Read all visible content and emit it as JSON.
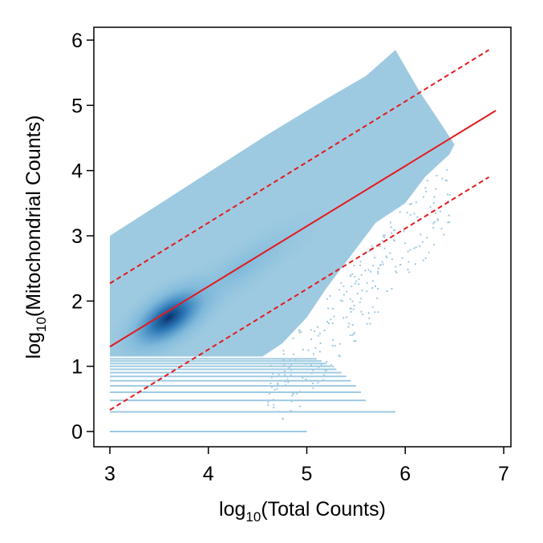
{
  "chart_data": {
    "type": "scatter",
    "title": "",
    "xlabel": {
      "prefix": "log",
      "subscript": "10",
      "text": "(Total Counts)"
    },
    "ylabel": {
      "prefix": "log",
      "subscript": "10",
      "text": "(Mitochondrial Counts)"
    },
    "xlim": [
      3,
      7
    ],
    "ylim": [
      0,
      6
    ],
    "xticks": [
      3,
      4,
      5,
      6,
      7
    ],
    "yticks": [
      0,
      1,
      2,
      3,
      4,
      5,
      6
    ],
    "grid": false,
    "legend": "none",
    "density_color": "#9ecae1",
    "density_peak_color": "#08306b",
    "density_peak": {
      "x": 3.6,
      "y": 1.75
    },
    "point_cloud_outline": [
      [
        3.0,
        1.15
      ],
      [
        3.0,
        3.0
      ],
      [
        4.0,
        3.97
      ],
      [
        4.6,
        4.55
      ],
      [
        5.2,
        5.1
      ],
      [
        5.6,
        5.45
      ],
      [
        5.9,
        5.85
      ],
      [
        6.15,
        5.2
      ],
      [
        6.35,
        4.75
      ],
      [
        6.5,
        4.4
      ],
      [
        6.45,
        4.25
      ],
      [
        6.2,
        3.9
      ],
      [
        6.0,
        3.5
      ],
      [
        5.7,
        3.2
      ],
      [
        5.45,
        2.7
      ],
      [
        5.2,
        2.2
      ],
      [
        5.0,
        1.75
      ],
      [
        4.75,
        1.35
      ],
      [
        4.55,
        1.15
      ]
    ],
    "discrete_rows": [
      {
        "y": 0.0,
        "x_end": 5.0
      },
      {
        "y": 0.301,
        "x_end": 5.9
      },
      {
        "y": 0.477,
        "x_end": 5.6
      },
      {
        "y": 0.602,
        "x_end": 5.55
      },
      {
        "y": 0.699,
        "x_end": 5.5
      },
      {
        "y": 0.778,
        "x_end": 5.45
      },
      {
        "y": 0.845,
        "x_end": 5.4
      },
      {
        "y": 0.903,
        "x_end": 5.35
      },
      {
        "y": 0.954,
        "x_end": 5.3
      },
      {
        "y": 1.0,
        "x_end": 5.25
      },
      {
        "y": 1.041,
        "x_end": 5.2
      },
      {
        "y": 1.079,
        "x_end": 5.15
      },
      {
        "y": 1.114,
        "x_end": 5.1
      }
    ],
    "fit_line": {
      "x": [
        3.0,
        6.92
      ],
      "y": [
        1.3,
        4.92
      ],
      "color": "#e41a1c",
      "style": "solid"
    },
    "upper_band": {
      "x": [
        3.0,
        6.85
      ],
      "y": [
        2.27,
        5.85
      ],
      "color": "#e41a1c",
      "style": "dashed"
    },
    "lower_band": {
      "x": [
        3.0,
        6.85
      ],
      "y": [
        0.33,
        3.9
      ],
      "color": "#e41a1c",
      "style": "dashed"
    }
  }
}
